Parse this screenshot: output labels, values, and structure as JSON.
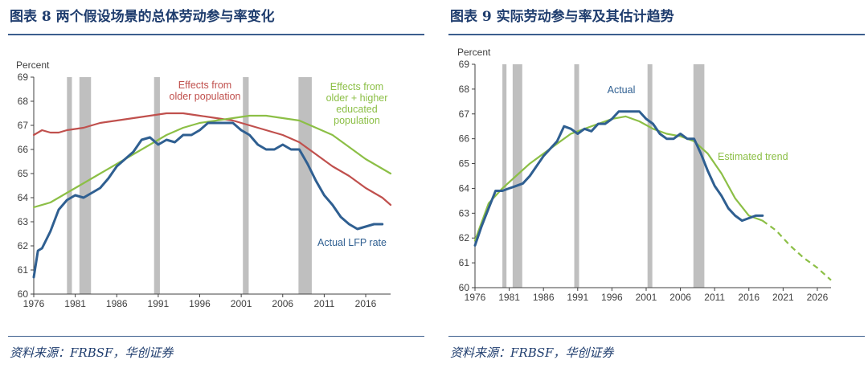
{
  "figures": [
    {
      "title": "图表 8 两个假设场景的总体劳动参与率变化",
      "source": "资料来源：FRBSF，华创证券",
      "chart_data": {
        "type": "line",
        "ylabel": "Percent",
        "xlim": [
          1976,
          2019
        ],
        "ylim": [
          60,
          69
        ],
        "yticks": [
          60,
          61,
          62,
          63,
          64,
          65,
          66,
          67,
          68,
          69
        ],
        "xticks": [
          1976,
          1981,
          1986,
          1991,
          1996,
          2001,
          2006,
          2011,
          2016
        ],
        "recessions": [
          [
            1980.0,
            1980.6
          ],
          [
            1981.5,
            1982.9
          ],
          [
            1990.5,
            1991.2
          ],
          [
            2001.2,
            2001.9
          ],
          [
            2007.9,
            2009.5
          ]
        ],
        "colors": {
          "actual": "#2f5f91",
          "older": "#c0504d",
          "higher": "#8cbf46",
          "recession": "#bfbfbf",
          "axis": "#404040"
        },
        "series": [
          {
            "name": "Actual LFP rate",
            "key": "actual",
            "label": [
              "Actual LFP rate"
            ],
            "points": [
              [
                1976,
                60.7
              ],
              [
                1976.5,
                61.8
              ],
              [
                1977,
                61.9
              ],
              [
                1978,
                62.6
              ],
              [
                1979,
                63.5
              ],
              [
                1980,
                63.9
              ],
              [
                1981,
                64.1
              ],
              [
                1982,
                64.0
              ],
              [
                1983,
                64.2
              ],
              [
                1984,
                64.4
              ],
              [
                1985,
                64.8
              ],
              [
                1986,
                65.3
              ],
              [
                1987,
                65.6
              ],
              [
                1988,
                65.9
              ],
              [
                1989,
                66.4
              ],
              [
                1990,
                66.5
              ],
              [
                1991,
                66.2
              ],
              [
                1992,
                66.4
              ],
              [
                1993,
                66.3
              ],
              [
                1994,
                66.6
              ],
              [
                1995,
                66.6
              ],
              [
                1996,
                66.8
              ],
              [
                1997,
                67.1
              ],
              [
                1998,
                67.1
              ],
              [
                1999,
                67.1
              ],
              [
                2000,
                67.1
              ],
              [
                2001,
                66.8
              ],
              [
                2002,
                66.6
              ],
              [
                2003,
                66.2
              ],
              [
                2004,
                66.0
              ],
              [
                2005,
                66.0
              ],
              [
                2006,
                66.2
              ],
              [
                2007,
                66.0
              ],
              [
                2008,
                66.0
              ],
              [
                2009,
                65.4
              ],
              [
                2010,
                64.7
              ],
              [
                2011,
                64.1
              ],
              [
                2012,
                63.7
              ],
              [
                2013,
                63.2
              ],
              [
                2014,
                62.9
              ],
              [
                2015,
                62.7
              ],
              [
                2016,
                62.8
              ],
              [
                2017,
                62.9
              ],
              [
                2018,
                62.9
              ]
            ]
          },
          {
            "name": "Effects from older population",
            "key": "older",
            "label": [
              "Effects from",
              "older population"
            ],
            "points": [
              [
                1976,
                66.6
              ],
              [
                1977,
                66.8
              ],
              [
                1978,
                66.7
              ],
              [
                1979,
                66.7
              ],
              [
                1980,
                66.8
              ],
              [
                1982,
                66.9
              ],
              [
                1984,
                67.1
              ],
              [
                1986,
                67.2
              ],
              [
                1988,
                67.3
              ],
              [
                1990,
                67.4
              ],
              [
                1992,
                67.5
              ],
              [
                1994,
                67.5
              ],
              [
                1996,
                67.4
              ],
              [
                1998,
                67.3
              ],
              [
                2000,
                67.2
              ],
              [
                2002,
                67.0
              ],
              [
                2004,
                66.8
              ],
              [
                2006,
                66.6
              ],
              [
                2008,
                66.3
              ],
              [
                2010,
                65.8
              ],
              [
                2012,
                65.3
              ],
              [
                2014,
                64.9
              ],
              [
                2016,
                64.4
              ],
              [
                2018,
                64.0
              ],
              [
                2019,
                63.7
              ]
            ]
          },
          {
            "name": "Effects from older + higher educated population",
            "key": "higher",
            "label": [
              "Effects from",
              "older + higher",
              "educated",
              "population"
            ],
            "points": [
              [
                1976,
                63.6
              ],
              [
                1978,
                63.8
              ],
              [
                1980,
                64.2
              ],
              [
                1982,
                64.6
              ],
              [
                1984,
                65.0
              ],
              [
                1986,
                65.4
              ],
              [
                1988,
                65.8
              ],
              [
                1990,
                66.2
              ],
              [
                1992,
                66.6
              ],
              [
                1994,
                66.9
              ],
              [
                1996,
                67.1
              ],
              [
                1998,
                67.2
              ],
              [
                2000,
                67.3
              ],
              [
                2002,
                67.4
              ],
              [
                2004,
                67.4
              ],
              [
                2006,
                67.3
              ],
              [
                2008,
                67.2
              ],
              [
                2010,
                66.9
              ],
              [
                2012,
                66.6
              ],
              [
                2014,
                66.1
              ],
              [
                2016,
                65.6
              ],
              [
                2018,
                65.2
              ],
              [
                2019,
                65.0
              ]
            ]
          }
        ]
      }
    },
    {
      "title": "图表 9 实际劳动参与率及其估计趋势",
      "source": "资料来源：FRBSF，华创证券",
      "chart_data": {
        "type": "line",
        "ylabel": "Percent",
        "xlim": [
          1976,
          2028
        ],
        "ylim": [
          60,
          69
        ],
        "yticks": [
          60,
          61,
          62,
          63,
          64,
          65,
          66,
          67,
          68,
          69
        ],
        "xticks": [
          1976,
          1981,
          1986,
          1991,
          1996,
          2001,
          2006,
          2011,
          2016,
          2021,
          2026
        ],
        "recessions": [
          [
            1980.0,
            1980.6
          ],
          [
            1981.5,
            1982.9
          ],
          [
            1990.5,
            1991.2
          ],
          [
            2001.2,
            2001.9
          ],
          [
            2007.9,
            2009.5
          ]
        ],
        "colors": {
          "actual": "#2f5f91",
          "trend": "#8cbf46",
          "recession": "#bfbfbf",
          "axis": "#404040"
        },
        "series": [
          {
            "name": "Actual",
            "key": "actual",
            "label": [
              "Actual"
            ],
            "points": [
              [
                1976,
                61.7
              ],
              [
                1977,
                62.5
              ],
              [
                1978,
                63.2
              ],
              [
                1979,
                63.9
              ],
              [
                1980,
                63.9
              ],
              [
                1981,
                64.0
              ],
              [
                1982,
                64.1
              ],
              [
                1983,
                64.2
              ],
              [
                1984,
                64.5
              ],
              [
                1985,
                64.9
              ],
              [
                1986,
                65.3
              ],
              [
                1987,
                65.6
              ],
              [
                1988,
                65.9
              ],
              [
                1989,
                66.5
              ],
              [
                1990,
                66.4
              ],
              [
                1991,
                66.2
              ],
              [
                1992,
                66.4
              ],
              [
                1993,
                66.3
              ],
              [
                1994,
                66.6
              ],
              [
                1995,
                66.6
              ],
              [
                1996,
                66.8
              ],
              [
                1997,
                67.1
              ],
              [
                1998,
                67.1
              ],
              [
                1999,
                67.1
              ],
              [
                2000,
                67.1
              ],
              [
                2001,
                66.8
              ],
              [
                2002,
                66.6
              ],
              [
                2003,
                66.2
              ],
              [
                2004,
                66.0
              ],
              [
                2005,
                66.0
              ],
              [
                2006,
                66.2
              ],
              [
                2007,
                66.0
              ],
              [
                2008,
                66.0
              ],
              [
                2009,
                65.4
              ],
              [
                2010,
                64.7
              ],
              [
                2011,
                64.1
              ],
              [
                2012,
                63.7
              ],
              [
                2013,
                63.2
              ],
              [
                2014,
                62.9
              ],
              [
                2015,
                62.7
              ],
              [
                2016,
                62.8
              ],
              [
                2017,
                62.9
              ],
              [
                2018,
                62.9
              ]
            ]
          },
          {
            "name": "Estimated trend",
            "key": "trend",
            "label": [
              "Estimated trend"
            ],
            "points": [
              [
                1976,
                61.9
              ],
              [
                1978,
                63.4
              ],
              [
                1980,
                64.0
              ],
              [
                1982,
                64.5
              ],
              [
                1984,
                65.0
              ],
              [
                1986,
                65.4
              ],
              [
                1988,
                65.8
              ],
              [
                1990,
                66.2
              ],
              [
                1992,
                66.4
              ],
              [
                1994,
                66.6
              ],
              [
                1996,
                66.8
              ],
              [
                1998,
                66.9
              ],
              [
                2000,
                66.7
              ],
              [
                2002,
                66.4
              ],
              [
                2004,
                66.2
              ],
              [
                2006,
                66.1
              ],
              [
                2008,
                65.9
              ],
              [
                2010,
                65.4
              ],
              [
                2012,
                64.6
              ],
              [
                2014,
                63.6
              ],
              [
                2016,
                62.9
              ],
              [
                2018,
                62.7
              ]
            ],
            "projection": [
              [
                2018,
                62.7
              ],
              [
                2020,
                62.3
              ],
              [
                2022,
                61.7
              ],
              [
                2024,
                61.2
              ],
              [
                2026,
                60.8
              ],
              [
                2028,
                60.3
              ]
            ]
          }
        ]
      }
    }
  ]
}
